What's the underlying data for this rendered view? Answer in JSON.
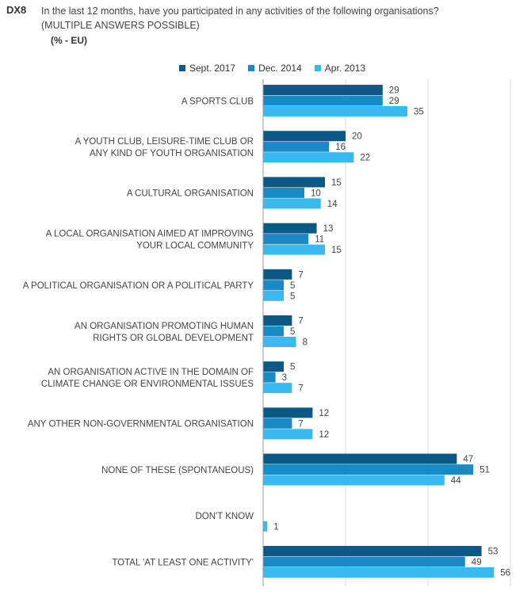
{
  "header": {
    "code": "DX8",
    "question_line1": "In the last 12 months, have you participated in any activities of the following organisations?",
    "question_line2": "(MULTIPLE ANSWERS POSSIBLE)",
    "unit": "(% - EU)"
  },
  "colors": {
    "sept2017": "#0b5a86",
    "dec2014": "#1a8ac6",
    "apr2013": "#3ab9ee",
    "grid": "#d9d9d9",
    "axis": "#9a9a9a"
  },
  "chart_data": {
    "type": "bar",
    "orientation": "horizontal",
    "xlim": [
      0,
      60
    ],
    "grid": true,
    "legend_position": "top",
    "categories": [
      [
        "A SPORTS CLUB"
      ],
      [
        "A YOUTH CLUB, LEISURE-TIME CLUB OR",
        "ANY KIND OF YOUTH ORGANISATION"
      ],
      [
        "A CULTURAL ORGANISATION"
      ],
      [
        "A LOCAL ORGANISATION AIMED AT IMPROVING",
        "YOUR LOCAL COMMUNITY"
      ],
      [
        "A POLITICAL ORGANISATION OR A POLITICAL PARTY"
      ],
      [
        "AN ORGANISATION PROMOTING HUMAN",
        "RIGHTS OR GLOBAL DEVELOPMENT"
      ],
      [
        "AN ORGANISATION ACTIVE IN THE DOMAIN OF",
        "CLIMATE CHANGE OR ENVIRONMENTAL ISSUES"
      ],
      [
        "ANY OTHER NON-GOVERNMENTAL ORGANISATION"
      ],
      [
        "NONE OF THESE (SPONTANEOUS)"
      ],
      [
        "DON'T KNOW"
      ],
      [
        "TOTAL 'AT LEAST ONE ACTIVITY'"
      ]
    ],
    "series": [
      {
        "name": "Sept. 2017",
        "color": "#0b5a86",
        "values": [
          29,
          20,
          15,
          13,
          7,
          7,
          5,
          12,
          47,
          null,
          53
        ]
      },
      {
        "name": "Dec. 2014",
        "color": "#1a8ac6",
        "values": [
          29,
          16,
          10,
          11,
          5,
          5,
          3,
          7,
          51,
          null,
          49
        ]
      },
      {
        "name": "Apr. 2013",
        "color": "#3ab9ee",
        "values": [
          35,
          22,
          14,
          15,
          5,
          8,
          7,
          12,
          44,
          1,
          56
        ]
      }
    ]
  }
}
